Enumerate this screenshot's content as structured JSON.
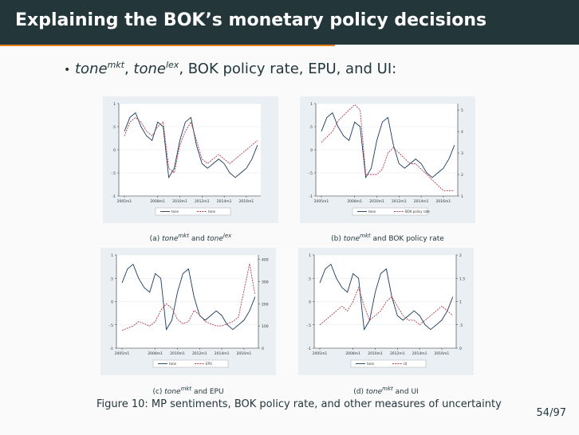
{
  "header": {
    "title": "Explaining the BOK’s monetary policy decisions"
  },
  "bullet": {
    "s1_base": "tone",
    "s1_sup": "mkt",
    "sep": ", ",
    "s2_base": "tone",
    "s2_sup": "lex",
    "rest": ", BOK policy rate, EPU, and UI:"
  },
  "colors": {
    "title_bg": "#23373b",
    "accent": "#eb811b",
    "panel_bg": "#e9eff2",
    "series1": "#1a3a5c",
    "series2": "#b03a4a"
  },
  "subcaptions": [
    {
      "prefix": "(a) ",
      "v1": "tone",
      "s1": "mkt",
      "mid": " and ",
      "v2": "tone",
      "s2": "lex",
      "tail": ""
    },
    {
      "prefix": "(b) ",
      "v1": "tone",
      "s1": "mkt",
      "mid": " and BOK policy rate",
      "v2": "",
      "s2": "",
      "tail": ""
    },
    {
      "prefix": "(c) ",
      "v1": "tone",
      "s1": "mkt",
      "mid": " and EPU",
      "v2": "",
      "s2": "",
      "tail": ""
    },
    {
      "prefix": "(d) ",
      "v1": "tone",
      "s1": "mkt",
      "mid": " and UI",
      "v2": "",
      "s2": "",
      "tail": ""
    }
  ],
  "figure": {
    "label": "Figure 10:",
    "text": " MP sentiments, BOK policy rate, and other measures of uncertainty"
  },
  "page": {
    "number": "54/97"
  },
  "chart_data": [
    {
      "type": "line",
      "x": [
        2005.0,
        2005.5,
        2006.0,
        2006.5,
        2007.0,
        2007.5,
        2008.0,
        2008.5,
        2009.0,
        2009.5,
        2010.0,
        2010.5,
        2011.0,
        2011.5,
        2012.0,
        2012.5,
        2013.0,
        2013.5,
        2014.0,
        2014.5,
        2015.0,
        2015.5,
        2016.0,
        2016.5,
        2017.0
      ],
      "xticks": [
        "2005m1",
        "2008m1",
        "2010m1",
        "2012m1",
        "2014m1",
        "2016m1"
      ],
      "xtick_values": [
        2005,
        2008,
        2010,
        2012,
        2014,
        2016
      ],
      "xlim": [
        2004.5,
        2017.3
      ],
      "yticks": [
        "-1",
        "-.5",
        "0",
        ".5",
        "1"
      ],
      "ytick_values": [
        -1,
        -0.5,
        0,
        0.5,
        1
      ],
      "ylim": [
        -1,
        1
      ],
      "series": [
        {
          "name": "tone",
          "dash": "solid",
          "values": [
            0.4,
            0.7,
            0.8,
            0.5,
            0.3,
            0.2,
            0.6,
            0.5,
            -0.6,
            -0.4,
            0.2,
            0.6,
            0.7,
            0.1,
            -0.3,
            -0.4,
            -0.3,
            -0.2,
            -0.3,
            -0.5,
            -0.6,
            -0.5,
            -0.4,
            -0.2,
            0.1
          ]
        },
        {
          "name": "tone",
          "dash": "dashed",
          "values": [
            0.3,
            0.6,
            0.7,
            0.6,
            0.4,
            0.3,
            0.5,
            0.6,
            -0.4,
            -0.5,
            0.1,
            0.4,
            0.6,
            0.2,
            -0.2,
            -0.3,
            -0.2,
            -0.1,
            -0.2,
            -0.3,
            -0.2,
            -0.1,
            0.0,
            0.1,
            0.2
          ]
        }
      ]
    },
    {
      "type": "line",
      "x": [
        2005.0,
        2005.5,
        2006.0,
        2006.5,
        2007.0,
        2007.5,
        2008.0,
        2008.5,
        2009.0,
        2009.5,
        2010.0,
        2010.5,
        2011.0,
        2011.5,
        2012.0,
        2012.5,
        2013.0,
        2013.5,
        2014.0,
        2014.5,
        2015.0,
        2015.5,
        2016.0,
        2016.5,
        2017.0
      ],
      "xticks": [
        "2005m1",
        "2008m1",
        "2010m1",
        "2012m1",
        "2014m1",
        "2016m1"
      ],
      "xtick_values": [
        2005,
        2008,
        2010,
        2012,
        2014,
        2016
      ],
      "xlim": [
        2004.5,
        2017.3
      ],
      "yticks": [
        "-1",
        "-.5",
        "0",
        ".5",
        "1"
      ],
      "ytick_values": [
        -1,
        -0.5,
        0,
        0.5,
        1
      ],
      "ylim": [
        -1,
        1
      ],
      "y2ticks": [
        "1",
        "2",
        "3",
        "4",
        "5"
      ],
      "y2tick_values": [
        1,
        2,
        3,
        4,
        5
      ],
      "y2lim": [
        1,
        5.3
      ],
      "series": [
        {
          "name": "tone",
          "dash": "solid",
          "axis": "left",
          "values": [
            0.4,
            0.7,
            0.8,
            0.5,
            0.3,
            0.2,
            0.6,
            0.5,
            -0.6,
            -0.4,
            0.2,
            0.6,
            0.7,
            0.1,
            -0.3,
            -0.4,
            -0.3,
            -0.2,
            -0.3,
            -0.5,
            -0.6,
            -0.5,
            -0.4,
            -0.2,
            0.1
          ]
        },
        {
          "name": "BOK policy rate",
          "dash": "dashed",
          "axis": "right",
          "values": [
            3.5,
            3.75,
            4.0,
            4.5,
            4.75,
            5.0,
            5.25,
            5.0,
            2.0,
            2.0,
            2.0,
            2.25,
            3.0,
            3.25,
            3.0,
            2.75,
            2.5,
            2.5,
            2.25,
            2.0,
            1.75,
            1.5,
            1.25,
            1.25,
            1.25
          ]
        }
      ]
    },
    {
      "type": "line",
      "x": [
        2005.0,
        2005.5,
        2006.0,
        2006.5,
        2007.0,
        2007.5,
        2008.0,
        2008.5,
        2009.0,
        2009.5,
        2010.0,
        2010.5,
        2011.0,
        2011.5,
        2012.0,
        2012.5,
        2013.0,
        2013.5,
        2014.0,
        2014.5,
        2015.0,
        2015.5,
        2016.0,
        2016.5,
        2017.0
      ],
      "xticks": [
        "2005m1",
        "2008m1",
        "2010m1",
        "2012m1",
        "2014m1",
        "2016m1"
      ],
      "xtick_values": [
        2005,
        2008,
        2010,
        2012,
        2014,
        2016
      ],
      "xlim": [
        2004.5,
        2017.3
      ],
      "yticks": [
        "-1",
        "-.5",
        "0",
        ".5",
        "1"
      ],
      "ytick_values": [
        -1,
        -0.5,
        0,
        0.5,
        1
      ],
      "ylim": [
        -1,
        1
      ],
      "y2ticks": [
        "0",
        "100",
        "200",
        "300",
        "400"
      ],
      "y2tick_values": [
        0,
        100,
        200,
        300,
        400
      ],
      "y2lim": [
        0,
        420
      ],
      "series": [
        {
          "name": "tone",
          "dash": "solid",
          "axis": "left",
          "values": [
            0.4,
            0.7,
            0.8,
            0.5,
            0.3,
            0.2,
            0.6,
            0.5,
            -0.6,
            -0.4,
            0.2,
            0.6,
            0.7,
            0.1,
            -0.3,
            -0.4,
            -0.3,
            -0.2,
            -0.3,
            -0.5,
            -0.6,
            -0.5,
            -0.4,
            -0.2,
            0.1
          ]
        },
        {
          "name": "EPU",
          "dash": "dashed",
          "axis": "right",
          "values": [
            80,
            90,
            100,
            120,
            110,
            100,
            120,
            170,
            200,
            180,
            130,
            110,
            120,
            170,
            150,
            120,
            110,
            100,
            100,
            110,
            120,
            140,
            260,
            380,
            240
          ]
        }
      ]
    },
    {
      "type": "line",
      "x": [
        2005.0,
        2005.5,
        2006.0,
        2006.5,
        2007.0,
        2007.5,
        2008.0,
        2008.5,
        2009.0,
        2009.5,
        2010.0,
        2010.5,
        2011.0,
        2011.5,
        2012.0,
        2012.5,
        2013.0,
        2013.5,
        2014.0,
        2014.5,
        2015.0,
        2015.5,
        2016.0,
        2016.5,
        2017.0
      ],
      "xticks": [
        "2005m1",
        "2008m1",
        "2010m1",
        "2012m1",
        "2014m1",
        "2016m1"
      ],
      "xtick_values": [
        2005,
        2008,
        2010,
        2012,
        2014,
        2016
      ],
      "xlim": [
        2004.5,
        2017.3
      ],
      "yticks": [
        "-1",
        "-.5",
        "0",
        ".5",
        "1"
      ],
      "ytick_values": [
        -1,
        -0.5,
        0,
        0.5,
        1
      ],
      "ylim": [
        -1,
        1
      ],
      "y2ticks": [
        "0",
        ".5",
        "1",
        "1.5",
        "2"
      ],
      "y2tick_values": [
        0,
        0.5,
        1,
        1.5,
        2
      ],
      "y2lim": [
        0,
        2
      ],
      "series": [
        {
          "name": "tone",
          "dash": "solid",
          "axis": "left",
          "values": [
            0.4,
            0.7,
            0.8,
            0.5,
            0.3,
            0.2,
            0.6,
            0.5,
            -0.6,
            -0.4,
            0.2,
            0.6,
            0.7,
            0.1,
            -0.3,
            -0.4,
            -0.3,
            -0.2,
            -0.3,
            -0.5,
            -0.6,
            -0.5,
            -0.4,
            -0.2,
            0.1
          ]
        },
        {
          "name": "UI",
          "dash": "dashed",
          "axis": "right",
          "values": [
            0.5,
            0.6,
            0.7,
            0.8,
            0.9,
            0.8,
            1.0,
            1.3,
            0.9,
            0.6,
            0.7,
            0.8,
            1.0,
            1.1,
            0.9,
            0.7,
            0.6,
            0.6,
            0.5,
            0.6,
            0.7,
            0.8,
            0.9,
            0.8,
            0.7
          ]
        }
      ]
    }
  ]
}
